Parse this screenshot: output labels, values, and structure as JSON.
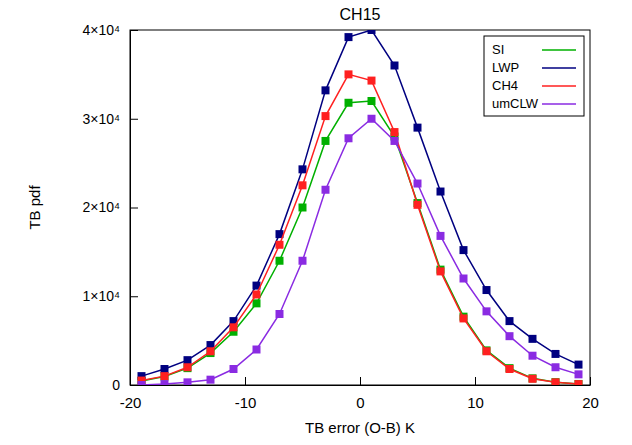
{
  "chart_data": {
    "type": "line",
    "title": "CH15",
    "x_label": "TB error (O-B) K",
    "y_label": "TB pdf",
    "x": [
      -19,
      -17,
      -15,
      -13,
      -11,
      -9,
      -7,
      -5,
      -3,
      -1,
      1,
      3,
      5,
      7,
      9,
      11,
      13,
      15,
      17,
      19
    ],
    "series": [
      {
        "name": "SI",
        "color": "#00b000",
        "marker": "square",
        "line_style": "solid",
        "values": [
          450,
          950,
          1900,
          3600,
          6000,
          9200,
          14000,
          20000,
          27500,
          31800,
          32000,
          28000,
          20500,
          13000,
          7700,
          3900,
          1900,
          750,
          320,
          120
        ]
      },
      {
        "name": "LWP",
        "color": "#000080",
        "marker": "square",
        "line_style": "solid",
        "values": [
          1000,
          1800,
          2800,
          4500,
          7200,
          11200,
          17000,
          24300,
          33200,
          39200,
          40000,
          36000,
          29000,
          21800,
          15200,
          10700,
          7200,
          5200,
          3500,
          2300
        ]
      },
      {
        "name": "CH4",
        "color": "#ff2020",
        "marker": "square",
        "line_style": "solid",
        "values": [
          500,
          1000,
          2000,
          3800,
          6500,
          10200,
          15800,
          22500,
          30300,
          35000,
          34300,
          28500,
          20300,
          12800,
          7500,
          3800,
          1800,
          700,
          300,
          100
        ]
      },
      {
        "name": "umCLW",
        "color": "#8a2be2",
        "marker": "square",
        "line_style": "solid",
        "values": [
          0,
          100,
          300,
          600,
          1800,
          4000,
          8000,
          14000,
          22000,
          27800,
          30000,
          27500,
          22700,
          16800,
          12000,
          8300,
          5500,
          3300,
          2000,
          1200
        ]
      }
    ],
    "xlim": [
      -20,
      20
    ],
    "xticks": [
      -20,
      -10,
      0,
      10,
      20
    ],
    "ylim": [
      0,
      40000
    ],
    "yticks": [
      0,
      {
        "value": 10000,
        "label": "1×10⁴"
      },
      {
        "value": 20000,
        "label": "2×10⁴"
      },
      {
        "value": 30000,
        "label": "3×10⁴"
      },
      {
        "value": 40000,
        "label": "4×10⁴"
      }
    ],
    "legend": "upper right",
    "grid": false
  }
}
